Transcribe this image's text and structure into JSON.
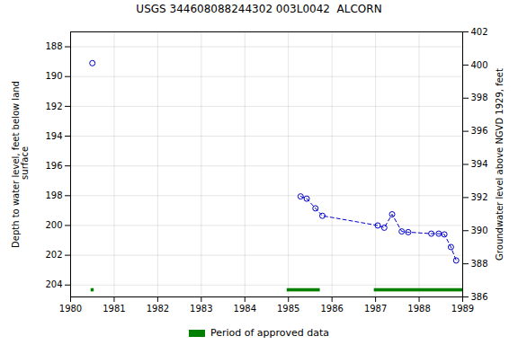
{
  "chart_data": {
    "type": "scatter",
    "title": "USGS 344608088244302 003L0042  ALCORN",
    "ylabel": "Depth to water level, feet below land\n surface",
    "y2label": "Groundwater level above NGVD 1929, feet",
    "xlim": [
      1980,
      1989
    ],
    "xticks": [
      1980,
      1981,
      1982,
      1983,
      1984,
      1985,
      1986,
      1987,
      1988,
      1989
    ],
    "ylim": [
      204.8,
      187.0
    ],
    "yticks": [
      188,
      190,
      192,
      194,
      196,
      198,
      200,
      202,
      204
    ],
    "y2lim": [
      386.0,
      402.0
    ],
    "y2ticks": [
      402,
      400,
      398,
      396,
      394,
      392,
      390,
      388,
      386
    ],
    "grid": true,
    "legend": "bottom",
    "series": [
      {
        "type": "scatter",
        "marker": "open_circle",
        "color": "#0000cc",
        "x": [
          1980.5
        ],
        "values": [
          189.1
        ]
      },
      {
        "type": "line",
        "line_style": "dashed",
        "marker": "open_circle",
        "color": "#0000cc",
        "x": [
          1985.28,
          1985.42,
          1985.62,
          1985.78,
          1987.05,
          1987.2,
          1987.38,
          1987.6,
          1987.75,
          1988.28,
          1988.45,
          1988.58,
          1988.73,
          1988.85
        ],
        "values": [
          198.05,
          198.2,
          198.85,
          199.35,
          200.0,
          200.15,
          199.25,
          200.4,
          200.45,
          200.55,
          200.55,
          200.6,
          201.45,
          202.35
        ]
      }
    ],
    "approved_periods": {
      "name": "Period of approved data",
      "color": "#008000",
      "x_start": [
        1980.47,
        1984.97,
        1986.97
      ],
      "x_end": [
        1980.54,
        1985.73,
        1989.0
      ],
      "y": 204.35,
      "height": 0.22
    }
  }
}
